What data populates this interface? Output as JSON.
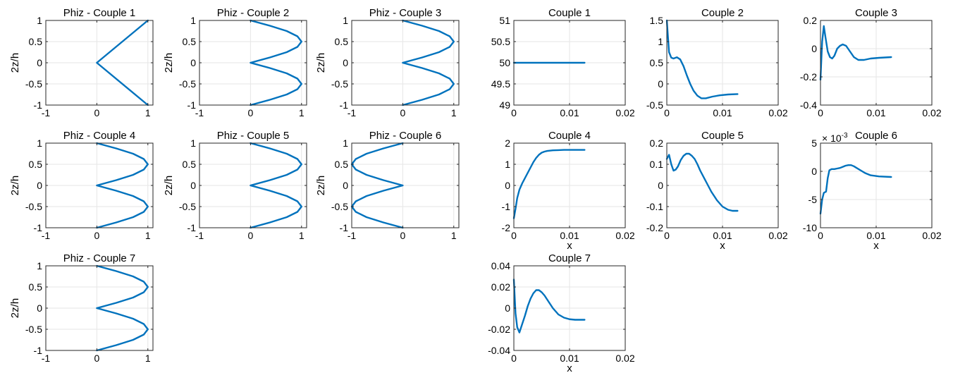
{
  "figure": {
    "line_color": "#0072BD",
    "grid_color": "#e6e6e6",
    "axis_color": "#262626"
  },
  "chart_data": [
    {
      "type": "line",
      "title": "Phiz - Couple 1",
      "xlabel": "",
      "ylabel": "2z/h",
      "xlim": [
        -1,
        1.1
      ],
      "ylim": [
        -1,
        1
      ],
      "grid": true,
      "xticks": [
        -1,
        0,
        1
      ],
      "xtick_labels": [
        "-1",
        "0",
        "1"
      ],
      "yticks": [
        -1,
        -0.5,
        0,
        0.5,
        1
      ],
      "ytick_labels": [
        "-1",
        "-0.5",
        "0",
        "0.5",
        "1"
      ],
      "series": [
        {
          "x": [
            1,
            0,
            1
          ],
          "y": [
            -1,
            0,
            1
          ]
        }
      ]
    },
    {
      "type": "line",
      "title": "Phiz - Couple 2",
      "xlabel": "",
      "ylabel": "2z/h",
      "xlim": [
        -1,
        1.1
      ],
      "ylim": [
        -1,
        1
      ],
      "grid": true,
      "xticks": [
        -1,
        0,
        1
      ],
      "xtick_labels": [
        "-1",
        "0",
        "1"
      ],
      "yticks": [
        -1,
        -0.5,
        0,
        0.5,
        1
      ],
      "ytick_labels": [
        "-1",
        "-0.5",
        "0",
        "0.5",
        "1"
      ],
      "series": [
        {
          "x": [
            0,
            0.38,
            0.71,
            0.92,
            1,
            0.92,
            0.71,
            0.38,
            0,
            0.38,
            0.71,
            0.92,
            1,
            0.92,
            0.71,
            0.38,
            0
          ],
          "y": [
            -1,
            -0.875,
            -0.75,
            -0.625,
            -0.5,
            -0.375,
            -0.25,
            -0.125,
            0,
            0.125,
            0.25,
            0.375,
            0.5,
            0.625,
            0.75,
            0.875,
            1
          ]
        }
      ]
    },
    {
      "type": "line",
      "title": "Phiz - Couple 3",
      "xlabel": "",
      "ylabel": "2z/h",
      "xlim": [
        -1,
        1.1
      ],
      "ylim": [
        -1,
        1
      ],
      "grid": true,
      "xticks": [
        -1,
        0,
        1
      ],
      "xtick_labels": [
        "-1",
        "0",
        "1"
      ],
      "yticks": [
        -1,
        -0.5,
        0,
        0.5,
        1
      ],
      "ytick_labels": [
        "-1",
        "-0.5",
        "0",
        "0.5",
        "1"
      ],
      "series": [
        {
          "x": [
            0,
            0.38,
            0.71,
            0.92,
            1,
            0.92,
            0.71,
            0.38,
            0,
            0.38,
            0.71,
            0.92,
            1,
            0.92,
            0.71,
            0.38,
            0
          ],
          "y": [
            -1,
            -0.875,
            -0.75,
            -0.625,
            -0.5,
            -0.375,
            -0.25,
            -0.125,
            0,
            0.125,
            0.25,
            0.375,
            0.5,
            0.625,
            0.75,
            0.875,
            1
          ]
        }
      ]
    },
    {
      "type": "line",
      "title": "Phiz - Couple 4",
      "xlabel": "",
      "ylabel": "2z/h",
      "xlim": [
        -1,
        1.1
      ],
      "ylim": [
        -1,
        1
      ],
      "grid": true,
      "xticks": [
        -1,
        0,
        1
      ],
      "xtick_labels": [
        "-1",
        "0",
        "1"
      ],
      "yticks": [
        -1,
        -0.5,
        0,
        0.5,
        1
      ],
      "ytick_labels": [
        "-1",
        "-0.5",
        "0",
        "0.5",
        "1"
      ],
      "series": [
        {
          "x": [
            0,
            0.38,
            0.71,
            0.92,
            1,
            0.92,
            0.71,
            0.38,
            0,
            0.38,
            0.71,
            0.92,
            1,
            0.92,
            0.71,
            0.38,
            0
          ],
          "y": [
            -1,
            -0.875,
            -0.75,
            -0.625,
            -0.5,
            -0.375,
            -0.25,
            -0.125,
            0,
            0.125,
            0.25,
            0.375,
            0.5,
            0.625,
            0.75,
            0.875,
            1
          ]
        }
      ]
    },
    {
      "type": "line",
      "title": "Phiz - Couple 5",
      "xlabel": "",
      "ylabel": "2z/h",
      "xlim": [
        -1,
        1.1
      ],
      "ylim": [
        -1,
        1
      ],
      "grid": true,
      "xticks": [
        -1,
        0,
        1
      ],
      "xtick_labels": [
        "-1",
        "0",
        "1"
      ],
      "yticks": [
        -1,
        -0.5,
        0,
        0.5,
        1
      ],
      "ytick_labels": [
        "-1",
        "-0.5",
        "0",
        "0.5",
        "1"
      ],
      "series": [
        {
          "x": [
            0,
            0.38,
            0.71,
            0.92,
            1,
            0.92,
            0.71,
            0.38,
            0,
            0.38,
            0.71,
            0.92,
            1,
            0.92,
            0.71,
            0.38,
            0
          ],
          "y": [
            -1,
            -0.875,
            -0.75,
            -0.625,
            -0.5,
            -0.375,
            -0.25,
            -0.125,
            0,
            0.125,
            0.25,
            0.375,
            0.5,
            0.625,
            0.75,
            0.875,
            1
          ]
        }
      ]
    },
    {
      "type": "line",
      "title": "Phiz - Couple 6",
      "xlabel": "",
      "ylabel": "2z/h",
      "xlim": [
        -1,
        1.1
      ],
      "ylim": [
        -1,
        1
      ],
      "grid": true,
      "xticks": [
        -1,
        0,
        1
      ],
      "xtick_labels": [
        "-1",
        "0",
        "1"
      ],
      "yticks": [
        -1,
        -0.5,
        0,
        0.5,
        1
      ],
      "ytick_labels": [
        "-1",
        "-0.5",
        "0",
        "0.5",
        "1"
      ],
      "series": [
        {
          "x": [
            0,
            -0.38,
            -0.71,
            -0.92,
            -1,
            -0.92,
            -0.71,
            -0.38,
            0,
            -0.38,
            -0.71,
            -0.92,
            -1,
            -0.92,
            -0.71,
            -0.38,
            0
          ],
          "y": [
            -1,
            -0.875,
            -0.75,
            -0.625,
            -0.5,
            -0.375,
            -0.25,
            -0.125,
            0,
            0.125,
            0.25,
            0.375,
            0.5,
            0.625,
            0.75,
            0.875,
            1
          ]
        }
      ]
    },
    {
      "type": "line",
      "title": "Phiz - Couple 7",
      "xlabel": "",
      "ylabel": "2z/h",
      "xlim": [
        -1,
        1.1
      ],
      "ylim": [
        -1,
        1
      ],
      "grid": true,
      "xticks": [
        -1,
        0,
        1
      ],
      "xtick_labels": [
        "-1",
        "0",
        "1"
      ],
      "yticks": [
        -1,
        -0.5,
        0,
        0.5,
        1
      ],
      "ytick_labels": [
        "-1",
        "-0.5",
        "0",
        "0.5",
        "1"
      ],
      "series": [
        {
          "x": [
            0,
            0.38,
            0.71,
            0.92,
            1,
            0.92,
            0.71,
            0.38,
            0,
            0.38,
            0.71,
            0.92,
            1,
            0.92,
            0.71,
            0.38,
            0
          ],
          "y": [
            -1,
            -0.875,
            -0.75,
            -0.625,
            -0.5,
            -0.375,
            -0.25,
            -0.125,
            0,
            0.125,
            0.25,
            0.375,
            0.5,
            0.625,
            0.75,
            0.875,
            1
          ]
        }
      ]
    },
    {
      "type": "line",
      "title": "Couple 1",
      "xlabel": "",
      "ylabel": "",
      "xlim": [
        0,
        0.02
      ],
      "ylim": [
        49,
        51
      ],
      "grid": true,
      "xticks": [
        0,
        0.01,
        0.02
      ],
      "xtick_labels": [
        "0",
        "0.01",
        "0.02"
      ],
      "yticks": [
        49,
        49.5,
        50,
        50.5,
        51
      ],
      "ytick_labels": [
        "49",
        "49.5",
        "50",
        "50.5",
        "51"
      ],
      "series": [
        {
          "x": [
            0,
            0.0127
          ],
          "y": [
            50,
            50
          ]
        }
      ]
    },
    {
      "type": "line",
      "title": "Couple 2",
      "xlabel": "",
      "ylabel": "",
      "xlim": [
        0,
        0.02
      ],
      "ylim": [
        -0.5,
        1.5
      ],
      "grid": true,
      "xticks": [
        0,
        0.01,
        0.02
      ],
      "xtick_labels": [
        "0",
        "0.01",
        "0.02"
      ],
      "yticks": [
        -0.5,
        0,
        0.5,
        1,
        1.5
      ],
      "ytick_labels": [
        "-0.5",
        "0",
        "0.5",
        "1",
        "1.5"
      ],
      "series": [
        {
          "x": [
            0,
            0.0004,
            0.0008,
            0.0012,
            0.0018,
            0.0024,
            0.003,
            0.0036,
            0.0042,
            0.0048,
            0.0055,
            0.0062,
            0.007,
            0.0082,
            0.0095,
            0.011,
            0.0127
          ],
          "y": [
            1.5,
            0.75,
            0.62,
            0.6,
            0.63,
            0.58,
            0.42,
            0.2,
            0.0,
            -0.16,
            -0.28,
            -0.34,
            -0.34,
            -0.3,
            -0.27,
            -0.25,
            -0.24
          ]
        }
      ]
    },
    {
      "type": "line",
      "title": "Couple 3",
      "xlabel": "",
      "ylabel": "",
      "xlim": [
        0,
        0.02
      ],
      "ylim": [
        -0.4,
        0.2
      ],
      "grid": true,
      "xticks": [
        0,
        0.01,
        0.02
      ],
      "xtick_labels": [
        "0",
        "0.01",
        "0.02"
      ],
      "yticks": [
        -0.4,
        -0.2,
        0,
        0.2
      ],
      "ytick_labels": [
        "-0.4",
        "-0.2",
        "0",
        "0.2"
      ],
      "series": [
        {
          "x": [
            0,
            0.0003,
            0.0006,
            0.0009,
            0.0013,
            0.0017,
            0.0021,
            0.0025,
            0.003,
            0.0035,
            0.004,
            0.0046,
            0.0053,
            0.006,
            0.0068,
            0.0078,
            0.009,
            0.0105,
            0.0127
          ],
          "y": [
            -0.22,
            0.05,
            0.16,
            0.08,
            -0.02,
            -0.06,
            -0.07,
            -0.05,
            0.0,
            0.02,
            0.03,
            0.02,
            -0.02,
            -0.06,
            -0.08,
            -0.08,
            -0.07,
            -0.065,
            -0.06
          ]
        }
      ]
    },
    {
      "type": "line",
      "title": "Couple 4",
      "xlabel": "x",
      "ylabel": "",
      "xlim": [
        0,
        0.02
      ],
      "ylim": [
        -2,
        2
      ],
      "grid": true,
      "xticks": [
        0,
        0.01,
        0.02
      ],
      "xtick_labels": [
        "0",
        "0.01",
        "0.02"
      ],
      "yticks": [
        -2,
        -1,
        0,
        1,
        2
      ],
      "ytick_labels": [
        "-2",
        "-1",
        "0",
        "1",
        "2"
      ],
      "series": [
        {
          "x": [
            0,
            0.0003,
            0.0006,
            0.001,
            0.0015,
            0.002,
            0.0025,
            0.003,
            0.0035,
            0.004,
            0.0045,
            0.005,
            0.0055,
            0.006,
            0.007,
            0.008,
            0.009,
            0.0105,
            0.0127
          ],
          "y": [
            -1.55,
            -1.1,
            -0.6,
            -0.2,
            0.1,
            0.35,
            0.6,
            0.85,
            1.1,
            1.3,
            1.45,
            1.55,
            1.6,
            1.63,
            1.66,
            1.67,
            1.68,
            1.68,
            1.68
          ]
        }
      ]
    },
    {
      "type": "line",
      "title": "Couple 5",
      "xlabel": "x",
      "ylabel": "",
      "xlim": [
        0,
        0.02
      ],
      "ylim": [
        -0.2,
        0.2
      ],
      "grid": true,
      "xticks": [
        0,
        0.01,
        0.02
      ],
      "xtick_labels": [
        "0",
        "0.01",
        "0.02"
      ],
      "yticks": [
        -0.2,
        -0.1,
        0,
        0.1,
        0.2
      ],
      "ytick_labels": [
        "-0.2",
        "-0.1",
        "0",
        "0.1",
        "0.2"
      ],
      "series": [
        {
          "x": [
            0,
            0.0004,
            0.0008,
            0.0012,
            0.0016,
            0.002,
            0.0025,
            0.003,
            0.0035,
            0.004,
            0.0045,
            0.005,
            0.0055,
            0.006,
            0.007,
            0.008,
            0.009,
            0.01,
            0.011,
            0.0118,
            0.0127
          ],
          "y": [
            0.125,
            0.145,
            0.1,
            0.07,
            0.075,
            0.09,
            0.12,
            0.14,
            0.15,
            0.15,
            0.14,
            0.125,
            0.1,
            0.07,
            0.02,
            -0.03,
            -0.07,
            -0.1,
            -0.115,
            -0.12,
            -0.12
          ]
        }
      ]
    },
    {
      "type": "line",
      "title": "Couple 6",
      "xlabel": "x",
      "ylabel": "",
      "exponent_label": "× 10",
      "exponent_power": "-3",
      "xlim": [
        0,
        0.02
      ],
      "ylim": [
        -10,
        5
      ],
      "grid": true,
      "xticks": [
        0,
        0.01,
        0.02
      ],
      "xtick_labels": [
        "0",
        "0.01",
        "0.02"
      ],
      "yticks": [
        -10,
        -5,
        0,
        5
      ],
      "ytick_labels": [
        "-10",
        "-5",
        "0",
        "5"
      ],
      "series": [
        {
          "x": [
            0,
            0.0003,
            0.0006,
            0.001,
            0.0013,
            0.0016,
            0.002,
            0.0025,
            0.003,
            0.0035,
            0.004,
            0.0045,
            0.005,
            0.0055,
            0.006,
            0.007,
            0.008,
            0.009,
            0.0105,
            0.0127
          ],
          "y": [
            -7.5,
            -5.0,
            -3.8,
            -3.6,
            -1.2,
            0.2,
            0.4,
            0.4,
            0.5,
            0.6,
            0.8,
            1.0,
            1.1,
            1.1,
            0.9,
            0.3,
            -0.3,
            -0.7,
            -0.9,
            -1.0
          ]
        }
      ]
    },
    {
      "type": "line",
      "title": "Couple 7",
      "xlabel": "x",
      "ylabel": "",
      "xlim": [
        0,
        0.02
      ],
      "ylim": [
        -0.04,
        0.04
      ],
      "grid": true,
      "xticks": [
        0,
        0.01,
        0.02
      ],
      "xtick_labels": [
        "0",
        "0.01",
        "0.02"
      ],
      "yticks": [
        -0.04,
        -0.02,
        0,
        0.02,
        0.04
      ],
      "ytick_labels": [
        "-0.04",
        "-0.02",
        "0",
        "0.02",
        "0.04"
      ],
      "series": [
        {
          "x": [
            0,
            0.0003,
            0.0006,
            0.001,
            0.0015,
            0.002,
            0.0025,
            0.003,
            0.0035,
            0.004,
            0.0045,
            0.005,
            0.0055,
            0.006,
            0.0065,
            0.007,
            0.0075,
            0.008,
            0.009,
            0.01,
            0.011,
            0.0127
          ],
          "y": [
            0.027,
            -0.005,
            -0.018,
            -0.023,
            -0.015,
            -0.007,
            0.002,
            0.009,
            0.014,
            0.017,
            0.017,
            0.015,
            0.012,
            0.008,
            0.004,
            0.0,
            -0.003,
            -0.006,
            -0.009,
            -0.0105,
            -0.011,
            -0.011
          ]
        }
      ]
    }
  ]
}
